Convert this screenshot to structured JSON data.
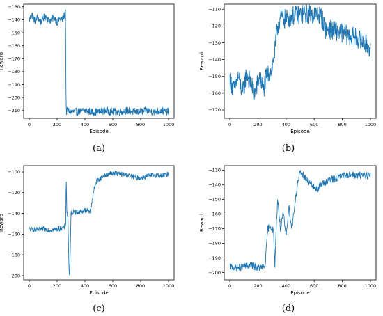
{
  "captions": [
    "(a)",
    "(b)",
    "(c)",
    "(d)"
  ],
  "chart_data": [
    {
      "type": "line",
      "xlabel": "Episode",
      "ylabel": "Reward",
      "xlim": [
        -40,
        1040
      ],
      "ylim": [
        -216,
        -128
      ],
      "xticks": [
        0,
        200,
        400,
        600,
        800,
        1000
      ],
      "yticks": [
        -210,
        -200,
        -190,
        -180,
        -170,
        -160,
        -150,
        -140,
        -130
      ],
      "series": [
        {
          "color": "#1f77b4",
          "x": [
            0,
            20,
            40,
            60,
            80,
            100,
            120,
            140,
            160,
            180,
            200,
            220,
            240,
            255,
            260,
            265,
            275,
            300,
            350,
            400,
            450,
            500,
            550,
            600,
            650,
            700,
            750,
            800,
            850,
            900,
            950,
            1000
          ],
          "y": [
            -140,
            -136,
            -141,
            -138,
            -142,
            -139,
            -137,
            -141,
            -140,
            -138,
            -142,
            -139,
            -140,
            -136,
            -133,
            -211,
            -210,
            -211,
            -211,
            -210,
            -211,
            -211,
            -210,
            -211,
            -211,
            -210,
            -211,
            -211,
            -210,
            -211,
            -210,
            -211
          ],
          "noise": 3.0
        }
      ]
    },
    {
      "type": "line",
      "xlabel": "Episode",
      "ylabel": "Reward",
      "xlim": [
        -40,
        1040
      ],
      "ylim": [
        -175,
        -107
      ],
      "xticks": [
        0,
        200,
        400,
        600,
        800,
        1000
      ],
      "yticks": [
        -170,
        -160,
        -150,
        -140,
        -130,
        -120,
        -110
      ],
      "series": [
        {
          "color": "#1f77b4",
          "x": [
            0,
            30,
            60,
            90,
            120,
            150,
            180,
            210,
            240,
            260,
            280,
            300,
            320,
            340,
            360,
            400,
            450,
            500,
            550,
            600,
            650,
            680,
            700,
            750,
            800,
            850,
            900,
            950,
            1000
          ],
          "y": [
            -152,
            -158,
            -150,
            -160,
            -148,
            -155,
            -160,
            -150,
            -158,
            -150,
            -148,
            -145,
            -135,
            -120,
            -115,
            -116,
            -114,
            -113,
            -113,
            -113,
            -114,
            -122,
            -122,
            -123,
            -124,
            -126,
            -127,
            -130,
            -133
          ],
          "noise": 6.0
        }
      ]
    },
    {
      "type": "line",
      "xlabel": "Episode",
      "ylabel": "Reward",
      "xlim": [
        -40,
        1040
      ],
      "ylim": [
        -204,
        -94
      ],
      "xticks": [
        0,
        200,
        400,
        600,
        800,
        1000
      ],
      "yticks": [
        -200,
        -180,
        -160,
        -140,
        -120,
        -100
      ],
      "series": [
        {
          "color": "#1f77b4",
          "x": [
            0,
            50,
            100,
            150,
            200,
            250,
            262,
            265,
            270,
            278,
            285,
            290,
            295,
            300,
            320,
            350,
            400,
            440,
            460,
            480,
            500,
            550,
            600,
            650,
            700,
            750,
            800,
            850,
            900,
            950,
            1000
          ],
          "y": [
            -155,
            -156,
            -155,
            -156,
            -155,
            -154,
            -150,
            -102,
            -138,
            -145,
            -190,
            -202,
            -175,
            -140,
            -138,
            -139,
            -137,
            -138,
            -120,
            -110,
            -107,
            -103,
            -101,
            -102,
            -103,
            -105,
            -106,
            -104,
            -103,
            -104,
            -102
          ],
          "noise": 2.5
        }
      ]
    },
    {
      "type": "line",
      "xlabel": "Episode",
      "ylabel": "Reward",
      "xlim": [
        -40,
        1040
      ],
      "ylim": [
        -205,
        -127
      ],
      "xticks": [
        0,
        200,
        400,
        600,
        800,
        1000
      ],
      "yticks": [
        -200,
        -190,
        -180,
        -170,
        -160,
        -150,
        -140,
        -130
      ],
      "series": [
        {
          "color": "#1f77b4",
          "x": [
            0,
            50,
            100,
            150,
            200,
            250,
            270,
            290,
            310,
            320,
            330,
            340,
            360,
            380,
            400,
            420,
            440,
            460,
            480,
            500,
            520,
            540,
            560,
            600,
            620,
            650,
            700,
            750,
            800,
            850,
            900,
            950,
            1000
          ],
          "y": [
            -196,
            -197,
            -196,
            -195,
            -197,
            -196,
            -170,
            -168,
            -172,
            -195,
            -168,
            -150,
            -170,
            -160,
            -175,
            -155,
            -170,
            -155,
            -140,
            -132,
            -133,
            -136,
            -138,
            -142,
            -143,
            -140,
            -137,
            -136,
            -134,
            -133,
            -134,
            -133,
            -134
          ],
          "noise": 2.5
        }
      ]
    }
  ]
}
